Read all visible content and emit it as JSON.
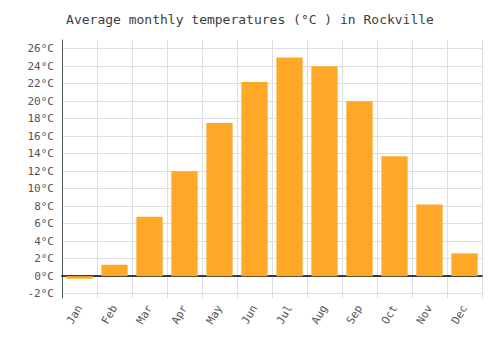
{
  "chart_data": {
    "type": "bar",
    "title": "Average monthly temperatures (°C ) in Rockville",
    "categories": [
      "Jan",
      "Feb",
      "Mar",
      "Apr",
      "May",
      "Jun",
      "Jul",
      "Aug",
      "Sep",
      "Oct",
      "Nov",
      "Dec"
    ],
    "values": [
      -0.3,
      1.3,
      6.8,
      12.0,
      17.5,
      22.2,
      25.0,
      24.0,
      20.0,
      13.7,
      8.2,
      2.6
    ],
    "color": "#FFA726",
    "ylim": [
      -2.5,
      27
    ],
    "yticks": [
      {
        "value": -2,
        "label": "-2°C"
      },
      {
        "value": 0,
        "label": "0°C"
      },
      {
        "value": 2,
        "label": "2°C"
      },
      {
        "value": 4,
        "label": "4°C"
      },
      {
        "value": 6,
        "label": "6°C"
      },
      {
        "value": 8,
        "label": "8°C"
      },
      {
        "value": 10,
        "label": "10°C"
      },
      {
        "value": 12,
        "label": "12°C"
      },
      {
        "value": 14,
        "label": "14°C"
      },
      {
        "value": 16,
        "label": "16°C"
      },
      {
        "value": 18,
        "label": "18°C"
      },
      {
        "value": 20,
        "label": "20°C"
      },
      {
        "value": 22,
        "label": "22°C"
      },
      {
        "value": 24,
        "label": "24°C"
      },
      {
        "value": 26,
        "label": "26°C"
      }
    ],
    "grid": true
  }
}
